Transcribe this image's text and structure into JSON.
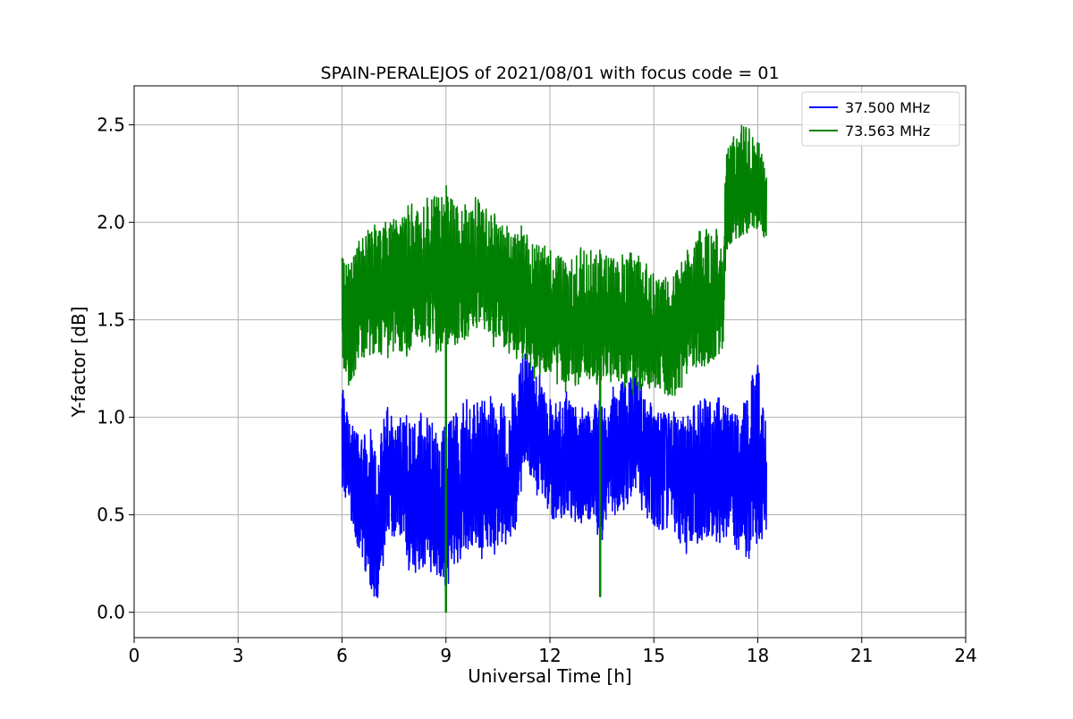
{
  "chart_data": {
    "type": "line",
    "title": "SPAIN-PERALEJOS of 2021/08/01 with focus code = 01",
    "xlabel": "Universal Time [h]",
    "ylabel": "Y-factor [dB]",
    "xlim": [
      0,
      24
    ],
    "ylim": [
      -0.13,
      2.7
    ],
    "xticks": [
      0,
      3,
      6,
      9,
      12,
      15,
      18,
      21,
      24
    ],
    "xtick_labels": [
      "0",
      "3",
      "6",
      "9",
      "12",
      "15",
      "18",
      "21",
      "24"
    ],
    "yticks": [
      0.0,
      0.5,
      1.0,
      1.5,
      2.0,
      2.5
    ],
    "ytick_labels": [
      "0.0",
      "0.5",
      "1.0",
      "1.5",
      "2.0",
      "2.5"
    ],
    "grid": true,
    "legend_position": "upper right",
    "series": [
      {
        "name": "37.500 MHz",
        "color": "#0000ff",
        "x_range": [
          6.0,
          18.25
        ],
        "x": [
          6.0,
          6.2,
          6.5,
          6.8,
          7.0,
          7.3,
          7.6,
          8.0,
          8.5,
          9.0,
          9.5,
          10.0,
          10.5,
          11.0,
          11.3,
          11.5,
          12.0,
          12.5,
          13.0,
          13.5,
          14.0,
          14.5,
          14.8,
          15.0,
          15.5,
          16.0,
          16.5,
          17.0,
          17.5,
          18.0,
          18.25
        ],
        "y_mean": [
          0.9,
          0.75,
          0.6,
          0.45,
          0.35,
          0.7,
          0.75,
          0.6,
          0.55,
          0.5,
          0.6,
          0.65,
          0.6,
          0.65,
          1.05,
          1.0,
          0.75,
          0.7,
          0.7,
          0.72,
          0.85,
          0.95,
          0.75,
          0.8,
          0.75,
          0.7,
          0.72,
          0.7,
          0.68,
          0.72,
          0.7
        ],
        "y_min": [
          0.62,
          0.45,
          0.28,
          0.1,
          0.0,
          0.35,
          0.4,
          0.15,
          0.2,
          0.12,
          0.3,
          0.25,
          0.3,
          0.4,
          0.7,
          0.65,
          0.45,
          0.45,
          0.45,
          0.35,
          0.5,
          0.6,
          0.45,
          0.4,
          0.35,
          0.27,
          0.35,
          0.35,
          0.25,
          0.3,
          0.35
        ],
        "y_max": [
          1.25,
          1.0,
          0.98,
          0.95,
          0.9,
          1.1,
          1.0,
          1.05,
          1.0,
          1.05,
          1.1,
          1.15,
          1.1,
          1.2,
          1.4,
          1.3,
          1.1,
          1.15,
          1.1,
          1.1,
          1.2,
          1.25,
          1.1,
          1.05,
          1.05,
          1.05,
          1.1,
          1.1,
          1.05,
          1.35,
          1.0
        ]
      },
      {
        "name": "73.563 MHz",
        "color": "#008000",
        "x_range": [
          6.0,
          18.25
        ],
        "x": [
          6.0,
          6.2,
          6.5,
          7.0,
          7.5,
          8.0,
          8.5,
          9.0,
          9.5,
          10.0,
          10.5,
          11.0,
          11.5,
          12.0,
          12.5,
          13.0,
          13.5,
          14.0,
          14.5,
          15.0,
          15.5,
          16.0,
          16.5,
          17.0,
          17.1,
          17.5,
          18.0,
          18.25
        ],
        "y_mean": [
          1.6,
          1.55,
          1.6,
          1.65,
          1.62,
          1.7,
          1.72,
          1.75,
          1.75,
          1.72,
          1.68,
          1.62,
          1.55,
          1.55,
          1.45,
          1.45,
          1.5,
          1.48,
          1.45,
          1.45,
          1.42,
          1.5,
          1.55,
          1.6,
          2.1,
          2.15,
          2.15,
          2.1
        ],
        "y_min": [
          1.2,
          1.1,
          1.25,
          1.3,
          1.3,
          1.3,
          1.35,
          1.3,
          1.38,
          1.4,
          1.35,
          1.3,
          1.2,
          1.2,
          1.12,
          1.15,
          1.15,
          1.18,
          1.1,
          1.15,
          1.05,
          1.15,
          1.25,
          1.3,
          1.85,
          1.9,
          1.95,
          1.88
        ],
        "y_max": [
          1.85,
          1.8,
          1.95,
          2.0,
          2.05,
          2.1,
          2.15,
          2.2,
          2.1,
          2.15,
          2.05,
          2.0,
          1.95,
          1.9,
          1.85,
          1.9,
          1.9,
          1.85,
          1.85,
          1.75,
          1.75,
          1.9,
          2.0,
          1.95,
          2.4,
          2.55,
          2.45,
          2.3
        ],
        "spikes": [
          {
            "x": 9.0,
            "y": 0.0
          },
          {
            "x": 13.45,
            "y": 0.08
          }
        ]
      }
    ]
  }
}
